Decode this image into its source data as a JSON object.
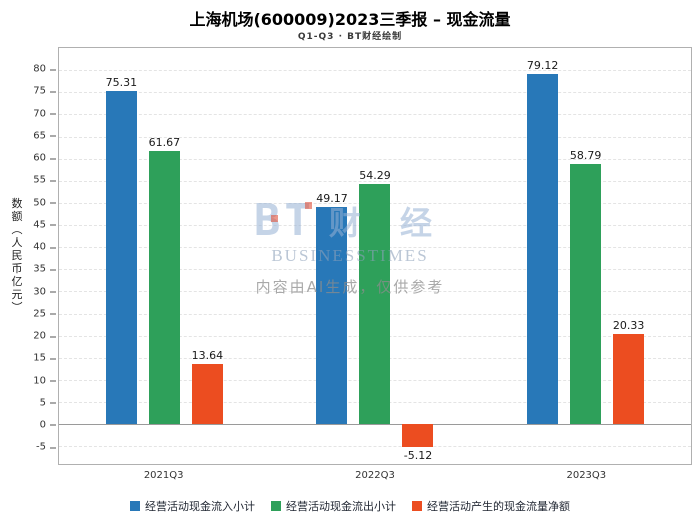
{
  "watermark": {
    "logo_text": "BT",
    "brand": "财 经",
    "brand_sub": "BUSINESSTIMES",
    "disclaimer": "内容由AI生成，仅供参考"
  },
  "chart_data": {
    "type": "bar",
    "title": "上海机场(600009)2023三季报 – 现金流量",
    "subtitle": "Q1-Q3 · BT财经绘制",
    "xlabel": "",
    "ylabel": "数额（人民币亿元）",
    "categories": [
      "2021Q3",
      "2022Q3",
      "2023Q3"
    ],
    "series": [
      {
        "name": "经营活动现金流入小计",
        "color": "#2878B8",
        "values": [
          75.31,
          49.17,
          79.12
        ]
      },
      {
        "name": "经营活动现金流出小计",
        "color": "#2EA05A",
        "values": [
          61.67,
          54.29,
          58.79
        ]
      },
      {
        "name": "经营活动产生的现金流量净额",
        "color": "#EC4D20",
        "values": [
          13.64,
          -5.12,
          20.33
        ]
      }
    ],
    "ylim": [
      -9,
      85
    ],
    "yticks": [
      80,
      75,
      70,
      65,
      60,
      55,
      50,
      45,
      40,
      35,
      30,
      25,
      20,
      15,
      10,
      5,
      0,
      -5
    ],
    "grid": true,
    "legend_position": "bottom"
  }
}
